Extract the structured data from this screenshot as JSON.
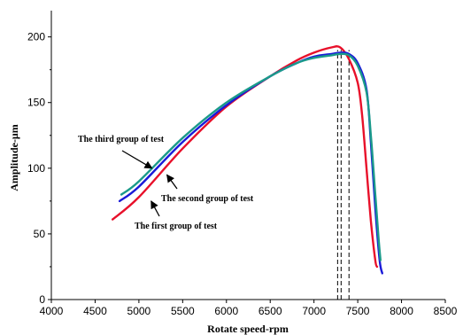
{
  "chart_data": {
    "type": "line",
    "title": "",
    "xlabel": "Rotate speed-rpm",
    "ylabel": "Amplitude-μm",
    "xlim": [
      4000,
      8500
    ],
    "ylim": [
      0,
      220
    ],
    "xticks": [
      "4000",
      "4500",
      "5000",
      "5500",
      "6000",
      "6500",
      "7000",
      "7500",
      "8000",
      "8500"
    ],
    "yticks": [
      "0",
      "50",
      "100",
      "150",
      "200"
    ],
    "grid": false,
    "legend": "none",
    "series": [
      {
        "name": "The first group of test",
        "color": "#e8102a",
        "x": [
          4700,
          5000,
          5500,
          6000,
          6500,
          6800,
          7000,
          7200,
          7300,
          7400,
          7500,
          7550,
          7600,
          7650,
          7700,
          7720
        ],
        "y": [
          61,
          78,
          115,
          147,
          170,
          182,
          188,
          192,
          192,
          183,
          165,
          140,
          100,
          60,
          30,
          25
        ]
      },
      {
        "name": "The second group of test",
        "color": "#1a1ad8",
        "x": [
          4780,
          5000,
          5500,
          6000,
          6500,
          6800,
          7000,
          7200,
          7300,
          7400,
          7500,
          7600,
          7650,
          7700,
          7750,
          7780
        ],
        "y": [
          75,
          86,
          120,
          148,
          170,
          180,
          185,
          187,
          188,
          187,
          180,
          160,
          120,
          70,
          30,
          20
        ]
      },
      {
        "name": "The third group of test",
        "color": "#1a9a8a",
        "x": [
          4800,
          5000,
          5500,
          6000,
          6500,
          6800,
          7000,
          7200,
          7300,
          7400,
          7500,
          7600,
          7650,
          7700,
          7740,
          7760
        ],
        "y": [
          80,
          90,
          123,
          150,
          170,
          180,
          184,
          186,
          187,
          186,
          178,
          158,
          125,
          80,
          45,
          30
        ]
      }
    ],
    "vlines": [
      7270,
      7310,
      7400
    ],
    "annotations": [
      {
        "text": "The third group of test",
        "target": [
          5150,
          100
        ]
      },
      {
        "text": "The second group of test",
        "target": [
          5320,
          95
        ]
      },
      {
        "text": "The first group of test",
        "target": [
          5140,
          75
        ]
      }
    ]
  }
}
